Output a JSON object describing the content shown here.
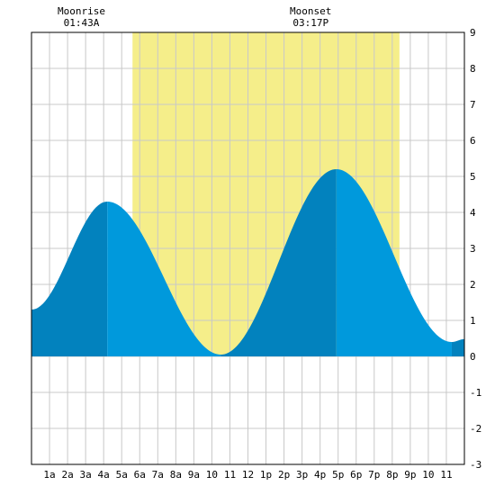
{
  "chart_data": {
    "type": "area",
    "x_tick_labels": [
      "1a",
      "2a",
      "3a",
      "4a",
      "5a",
      "6a",
      "7a",
      "8a",
      "9a",
      "10",
      "11",
      "12",
      "1p",
      "2p",
      "3p",
      "4p",
      "5p",
      "6p",
      "7p",
      "8p",
      "9p",
      "10",
      "11"
    ],
    "y_tick_labels": [
      "-3",
      "-2",
      "-1",
      "0",
      "1",
      "2",
      "3",
      "4",
      "5",
      "6",
      "7",
      "8",
      "9"
    ],
    "xlim": [
      0,
      24
    ],
    "ylim": [
      -3,
      9
    ],
    "grid": true,
    "daylight_hours": [
      5.6,
      20.4
    ],
    "tide_extrema": [
      {
        "hour": 0.0,
        "height": 1.3
      },
      {
        "hour": 4.2,
        "height": 4.3
      },
      {
        "hour": 10.5,
        "height": 0.05
      },
      {
        "hour": 16.9,
        "height": 5.2
      },
      {
        "hour": 23.3,
        "height": 0.4
      },
      {
        "hour": 24.0,
        "height": 0.48
      }
    ],
    "annotations": [
      {
        "label": "Moonrise",
        "time": "01:43A",
        "hour": 1.72
      },
      {
        "label": "Moonset",
        "time": "03:17P",
        "hour": 15.28
      }
    ],
    "colors": {
      "tide_dark": "#0282be",
      "tide_light": "#0099dc",
      "daylight": "#f5ee8a",
      "grid": "#c8c8c8",
      "frame": "#000000"
    }
  }
}
